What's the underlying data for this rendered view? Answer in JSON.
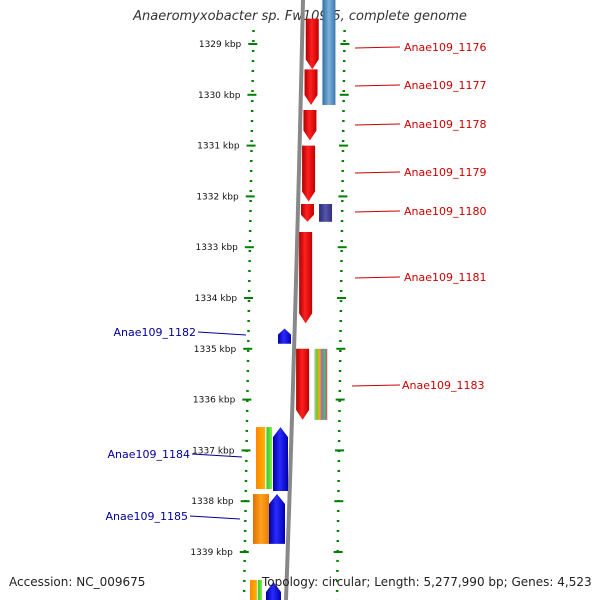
{
  "title": "Anaeromyxobacter sp. Fw109-5, complete genome",
  "footer": {
    "accession": "Accession: NC_009675",
    "topology": "Topology: circular; Length: 5,277,990 bp; Genes: 4,523"
  },
  "scale": {
    "unit": "kbp",
    "ticks": [
      {
        "label": "1329 kbp",
        "kbp": 1329
      },
      {
        "label": "1330 kbp",
        "kbp": 1330
      },
      {
        "label": "1331 kbp",
        "kbp": 1331
      },
      {
        "label": "1332 kbp",
        "kbp": 1332
      },
      {
        "label": "1333 kbp",
        "kbp": 1333
      },
      {
        "label": "1334 kbp",
        "kbp": 1334
      },
      {
        "label": "1335 kbp",
        "kbp": 1335
      },
      {
        "label": "1336 kbp",
        "kbp": 1336
      },
      {
        "label": "1337 kbp",
        "kbp": 1337
      },
      {
        "label": "1338 kbp",
        "kbp": 1338
      },
      {
        "label": "1339 kbp",
        "kbp": 1339
      }
    ]
  },
  "colors": {
    "forward_label": "#cc0000",
    "reverse_label": "#000099",
    "forward_gene": "#ff0000",
    "reverse_gene": "#0000ff",
    "axis": "#888888",
    "tick": "#008000"
  },
  "genes": [
    {
      "label": "Anae109_1176",
      "strand": "+",
      "start_kbp": 1328.5,
      "end_kbp": 1329.5
    },
    {
      "label": "Anae109_1177",
      "strand": "+",
      "start_kbp": 1329.5,
      "end_kbp": 1330.2
    },
    {
      "label": "Anae109_1178",
      "strand": "+",
      "start_kbp": 1330.3,
      "end_kbp": 1330.9
    },
    {
      "label": "Anae109_1179",
      "strand": "+",
      "start_kbp": 1331.0,
      "end_kbp": 1332.1
    },
    {
      "label": "Anae109_1180",
      "strand": "+",
      "start_kbp": 1332.15,
      "end_kbp": 1332.5
    },
    {
      "label": "Anae109_1181",
      "strand": "+",
      "start_kbp": 1332.7,
      "end_kbp": 1334.5
    },
    {
      "label": "Anae109_1182",
      "strand": "-",
      "start_kbp": 1334.6,
      "end_kbp": 1334.9
    },
    {
      "label": "Anae109_1183",
      "strand": "+",
      "start_kbp": 1335.0,
      "end_kbp": 1336.4
    },
    {
      "label": "Anae109_1184",
      "strand": "-",
      "start_kbp": 1336.6,
      "end_kbp": 1337.8
    },
    {
      "label": "Anae109_1185",
      "strand": "-",
      "start_kbp": 1337.8,
      "end_kbp": 1338.9
    }
  ]
}
